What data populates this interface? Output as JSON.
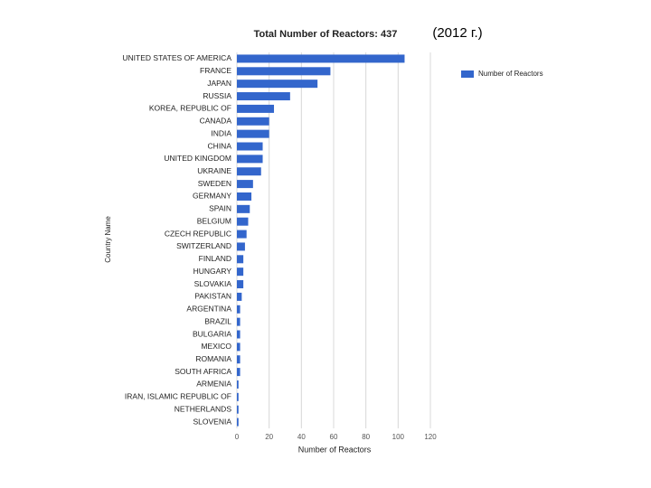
{
  "chart_data": {
    "type": "barh",
    "title": "Total Number of Reactors: 437",
    "subtitle": "(2012 г.)",
    "xlabel": "Number of Reactors",
    "ylabel": "Country Name",
    "categories": [
      "UNITED STATES OF AMERICA",
      "FRANCE",
      "JAPAN",
      "RUSSIA",
      "KOREA, REPUBLIC OF",
      "CANADA",
      "INDIA",
      "CHINA",
      "UNITED KINGDOM",
      "UKRAINE",
      "SWEDEN",
      "GERMANY",
      "SPAIN",
      "BELGIUM",
      "CZECH REPUBLIC",
      "SWITZERLAND",
      "FINLAND",
      "HUNGARY",
      "SLOVAKIA",
      "PAKISTAN",
      "ARGENTINA",
      "BRAZIL",
      "BULGARIA",
      "MEXICO",
      "ROMANIA",
      "SOUTH AFRICA",
      "ARMENIA",
      "IRAN, ISLAMIC REPUBLIC OF",
      "NETHERLANDS",
      "SLOVENIA"
    ],
    "series": [
      {
        "name": "Number of Reactors",
        "color": "#3366cc",
        "values": [
          104,
          58,
          50,
          33,
          23,
          20,
          20,
          16,
          16,
          15,
          10,
          9,
          8,
          7,
          6,
          5,
          4,
          4,
          4,
          3,
          2,
          2,
          2,
          2,
          2,
          2,
          1,
          1,
          1,
          1
        ]
      }
    ],
    "xlim": [
      0,
      120
    ],
    "xticks": [
      0,
      20,
      40,
      60,
      80,
      100,
      120
    ],
    "grid": true,
    "legend": "right"
  }
}
